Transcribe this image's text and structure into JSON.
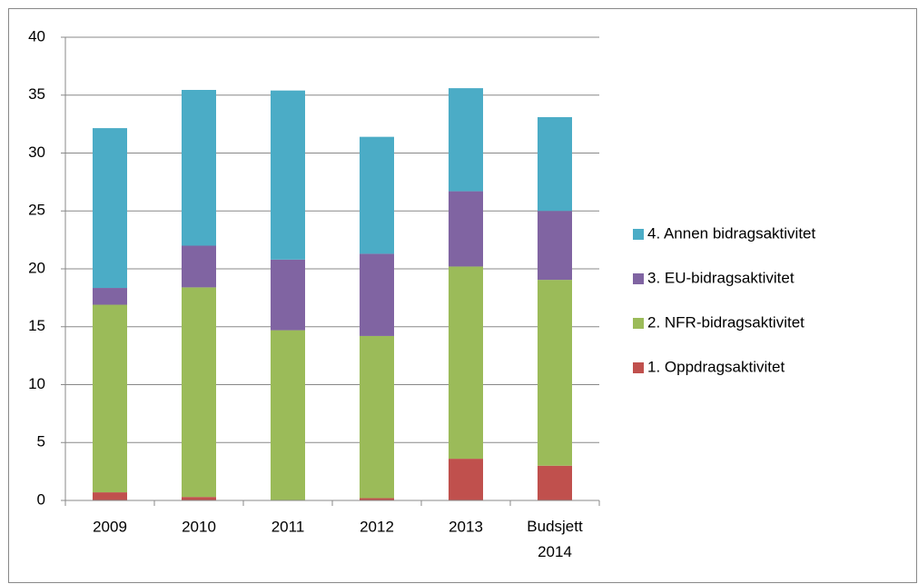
{
  "chart_data": {
    "type": "stacked_bar",
    "categories": [
      "2009",
      "2010",
      "2011",
      "2012",
      "2013",
      "Budsjett 2014"
    ],
    "series": [
      {
        "name": "1. Oppdragsaktivitet",
        "color": "#c0504d",
        "values": [
          0.7,
          0.3,
          0,
          0.2,
          3.6,
          3.0
        ]
      },
      {
        "name": "2. NFR-bidragsaktivitet",
        "color": "#9bbb59",
        "values": [
          16.2,
          18.1,
          14.7,
          14.0,
          16.6,
          16.05
        ]
      },
      {
        "name": "3. EU-bidragsaktivitet",
        "color": "#8064a2",
        "values": [
          1.45,
          3.6,
          6.1,
          7.1,
          6.5,
          5.95
        ]
      },
      {
        "name": "4. Annen bidragsaktivitet",
        "color": "#4bacc6",
        "values": [
          13.8,
          13.45,
          14.6,
          10.1,
          8.9,
          8.1
        ]
      }
    ],
    "ylim": [
      0,
      40
    ],
    "yticks": [
      0,
      5,
      10,
      15,
      20,
      25,
      30,
      35,
      40
    ],
    "grid": true,
    "legend": "right"
  }
}
